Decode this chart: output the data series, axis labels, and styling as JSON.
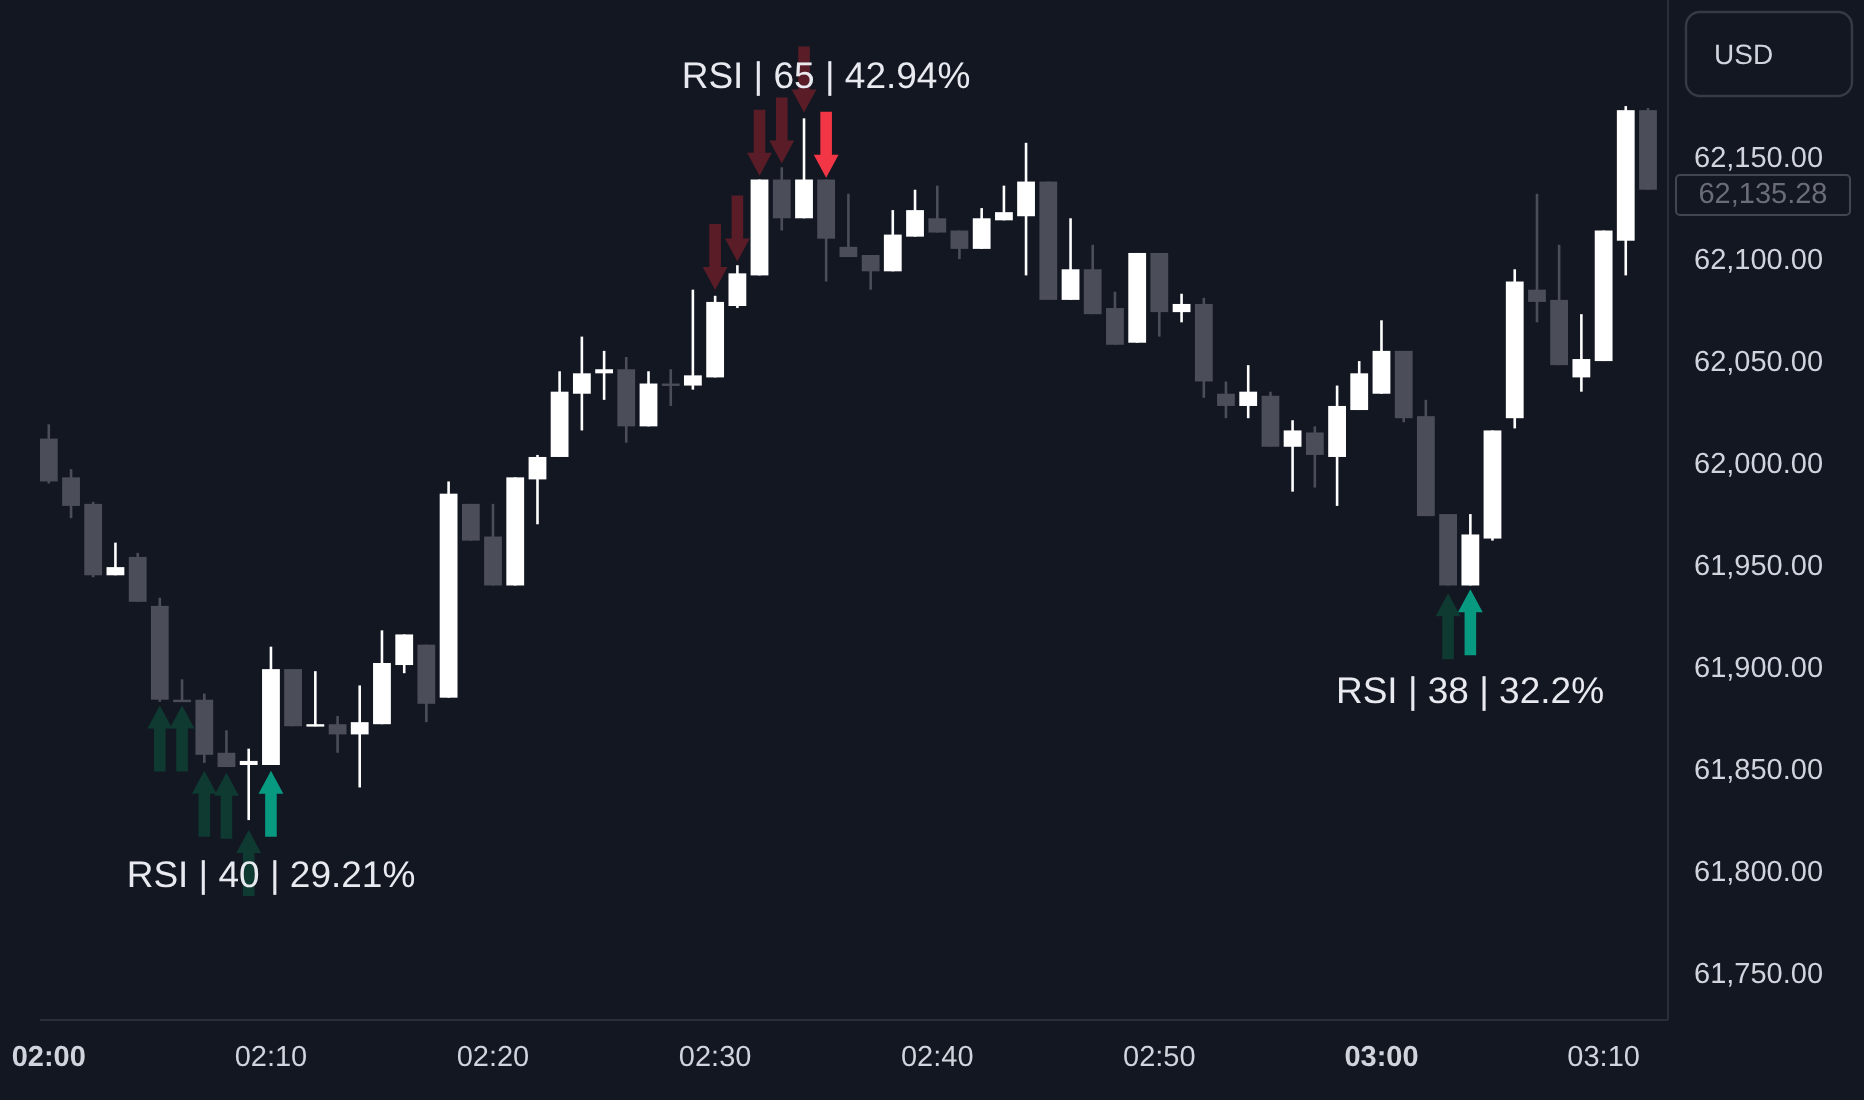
{
  "chart_data": {
    "type": "candlestick",
    "ylabel": "USD",
    "xlim": [
      1.9934,
      3.215
    ],
    "ylim": [
      61728,
      62228
    ],
    "xticks": [
      {
        "value": 2,
        "label": "02:00"
      },
      {
        "value": 2.1667,
        "label": "02:10"
      },
      {
        "value": 2.3333,
        "label": "02:20"
      },
      {
        "value": 2.5,
        "label": "02:30"
      },
      {
        "value": 2.6667,
        "label": "02:40"
      },
      {
        "value": 2.8333,
        "label": "02:50"
      },
      {
        "value": 3,
        "label": "03:00"
      },
      {
        "value": 3.1667,
        "label": "03:10"
      }
    ],
    "yticks": [
      {
        "value": 61750,
        "label": "61,750.00"
      },
      {
        "value": 61800,
        "label": "61,800.00"
      },
      {
        "value": 61850,
        "label": "61,850.00"
      },
      {
        "value": 61900,
        "label": "61,900.00"
      },
      {
        "value": 61950,
        "label": "61,950.00"
      },
      {
        "value": 62000,
        "label": "62,000.00"
      },
      {
        "value": 62050,
        "label": "62,050.00"
      },
      {
        "value": 62100,
        "label": "62,100.00"
      },
      {
        "value": 62150,
        "label": "62,150.00"
      }
    ],
    "x": [
      2,
      2.0167,
      2.0333,
      2.05,
      2.0667,
      2.0833,
      2.1,
      2.1167,
      2.1333,
      2.15,
      2.1667,
      2.1833,
      2.2,
      2.2167,
      2.2333,
      2.25,
      2.2667,
      2.2833,
      2.3,
      2.3167,
      2.3333,
      2.35,
      2.3667,
      2.3833,
      2.4,
      2.4167,
      2.4333,
      2.45,
      2.4667,
      2.4833,
      2.5,
      2.5167,
      2.5333,
      2.55,
      2.5667,
      2.5833,
      2.6,
      2.6167,
      2.6333,
      2.65,
      2.6667,
      2.6833,
      2.7,
      2.7167,
      2.7333,
      2.75,
      2.7667,
      2.7833,
      2.8,
      2.8167,
      2.8333,
      2.85,
      2.8667,
      2.8833,
      2.9,
      2.9167,
      2.9333,
      2.95,
      2.9667,
      2.9833,
      3,
      3.0167,
      3.0333,
      3.05,
      3.0667,
      3.0833,
      3.1,
      3.1167,
      3.1333,
      3.15,
      3.1667,
      3.1833,
      3.2
    ],
    "ohlc": [
      [
        62013,
        62020,
        61991,
        61992
      ],
      [
        61994,
        61998,
        61974,
        61980
      ],
      [
        61981,
        61982,
        61945,
        61946
      ],
      [
        61946,
        61962,
        61946,
        61950
      ],
      [
        61955,
        61957,
        61933,
        61933
      ],
      [
        61931,
        61935,
        61884,
        61885
      ],
      [
        61885,
        61895,
        61884,
        61884
      ],
      [
        61885,
        61888,
        61854,
        61858
      ],
      [
        61859,
        61870,
        61852,
        61852
      ],
      [
        61853,
        61861,
        61826,
        61855
      ],
      [
        61853,
        61911,
        61853,
        61900
      ],
      [
        61900,
        61900,
        61872,
        61872
      ],
      [
        61872,
        61899,
        61872,
        61873
      ],
      [
        61873,
        61877,
        61859,
        61868
      ],
      [
        61868,
        61892,
        61842,
        61874
      ],
      [
        61873,
        61919,
        61873,
        61903
      ],
      [
        61902,
        61917,
        61898,
        61917
      ],
      [
        61912,
        61912,
        61874,
        61883
      ],
      [
        61886,
        61992,
        61886,
        61986
      ],
      [
        61981,
        61981,
        61963,
        61963
      ],
      [
        61965,
        61981,
        61941,
        61941
      ],
      [
        61941,
        61994,
        61941,
        61994
      ],
      [
        61993,
        62005,
        61971,
        62004
      ],
      [
        62004,
        62046,
        62004,
        62036
      ],
      [
        62035,
        62063,
        62017,
        62045
      ],
      [
        62045,
        62056,
        62032,
        62047
      ],
      [
        62047,
        62053,
        62011,
        62019
      ],
      [
        62019,
        62046,
        62019,
        62040
      ],
      [
        62040,
        62047,
        62029,
        62039
      ],
      [
        62039,
        62086,
        62037,
        62044
      ],
      [
        62043,
        62083,
        62043,
        62080
      ],
      [
        62078,
        62098,
        62077,
        62094
      ],
      [
        62093,
        62140,
        62093,
        62140
      ],
      [
        62140,
        62146,
        62115,
        62121
      ],
      [
        62121,
        62170,
        62121,
        62140
      ],
      [
        62140,
        62140,
        62090,
        62111
      ],
      [
        62107,
        62133,
        62102,
        62102
      ],
      [
        62103,
        62103,
        62086,
        62095
      ],
      [
        62095,
        62125,
        62095,
        62113
      ],
      [
        62112,
        62135,
        62112,
        62125
      ],
      [
        62121,
        62137,
        62114,
        62114
      ],
      [
        62115,
        62115,
        62101,
        62106
      ],
      [
        62106,
        62126,
        62106,
        62121
      ],
      [
        62120,
        62137,
        62120,
        62124
      ],
      [
        62122,
        62158,
        62093,
        62139
      ],
      [
        62139,
        62139,
        62081,
        62081
      ],
      [
        62081,
        62121,
        62081,
        62096
      ],
      [
        62096,
        62108,
        62074,
        62074
      ],
      [
        62077,
        62085,
        62059,
        62059
      ],
      [
        62060,
        62104,
        62060,
        62104
      ],
      [
        62104,
        62104,
        62063,
        62075
      ],
      [
        62075,
        62084,
        62070,
        62079
      ],
      [
        62079,
        62082,
        62033,
        62041
      ],
      [
        62035,
        62041,
        62023,
        62029
      ],
      [
        62029,
        62049,
        62023,
        62036
      ],
      [
        62034,
        62036,
        62009,
        62009
      ],
      [
        62009,
        62022,
        61987,
        62017
      ],
      [
        62016,
        62019,
        61989,
        62005
      ],
      [
        62004,
        62039,
        61980,
        62029
      ],
      [
        62027,
        62051,
        62027,
        62045
      ],
      [
        62035,
        62071,
        62035,
        62056
      ],
      [
        62056,
        62056,
        62021,
        62023
      ],
      [
        62024,
        62032,
        61975,
        61975
      ],
      [
        61976,
        61976,
        61941,
        61941
      ],
      [
        61941,
        61976,
        61941,
        61966
      ],
      [
        61964,
        62017,
        61963,
        62017
      ],
      [
        62023,
        62096,
        62018,
        62090
      ],
      [
        62086,
        62133,
        62070,
        62080
      ],
      [
        62081,
        62108,
        62049,
        62049
      ],
      [
        62043,
        62074,
        62036,
        62052
      ],
      [
        62051,
        62115,
        62051,
        62115
      ],
      [
        62110,
        62176,
        62093,
        62174
      ],
      [
        62174,
        62175,
        62135,
        62135
      ]
    ],
    "colors": [
      "#4b4e58",
      "#4b4e58",
      "#4b4e58",
      "#ffffff",
      "#4b4e58",
      "#4b4e58",
      "#4b4e58",
      "#4b4e58",
      "#4b4e58",
      "#ffffff",
      "#ffffff",
      "#4b4e58",
      "#ffffff",
      "#4b4e58",
      "#ffffff",
      "#ffffff",
      "#ffffff",
      "#4b4e58",
      "#ffffff",
      "#4b4e58",
      "#4b4e58",
      "#ffffff",
      "#ffffff",
      "#ffffff",
      "#ffffff",
      "#ffffff",
      "#4b4e58",
      "#ffffff",
      "#4b4e58",
      "#ffffff",
      "#ffffff",
      "#ffffff",
      "#ffffff",
      "#4b4e58",
      "#ffffff",
      "#4b4e58",
      "#4b4e58",
      "#4b4e58",
      "#ffffff",
      "#ffffff",
      "#4b4e58",
      "#4b4e58",
      "#ffffff",
      "#ffffff",
      "#ffffff",
      "#4b4e58",
      "#ffffff",
      "#4b4e58",
      "#4b4e58",
      "#ffffff",
      "#4b4e58",
      "#ffffff",
      "#4b4e58",
      "#4b4e58",
      "#ffffff",
      "#4b4e58",
      "#ffffff",
      "#4b4e58",
      "#ffffff",
      "#ffffff",
      "#ffffff",
      "#4b4e58",
      "#4b4e58",
      "#4b4e58",
      "#ffffff",
      "#ffffff",
      "#ffffff",
      "#4b4e58",
      "#4b4e58",
      "#ffffff",
      "#ffffff",
      "#ffffff",
      "#4b4e58"
    ],
    "series": [
      {
        "type": "scatter",
        "x": [
          2.0833,
          2.1,
          2.1167,
          2.1333,
          2.15,
          2.1667,
          3.05,
          3.0667
        ],
        "values": [
          61866,
          61866,
          61834,
          61833,
          61805,
          61834,
          61921,
          61923
        ],
        "colors": [
          "#0e3a32",
          "#0e3a32",
          "#0e3a32",
          "#0e3a32",
          "#0e3a32",
          "#089981",
          "#0e3a32",
          "#089981"
        ]
      },
      {
        "type": "scatter",
        "x": [
          2.5,
          2.5167,
          2.5333,
          2.55,
          2.5667,
          2.5833
        ],
        "values": [
          62102,
          62116,
          62158,
          62164,
          62189,
          62157
        ],
        "colors": [
          "#5a1d27",
          "#5a1d27",
          "#5a1d27",
          "#5a1d27",
          "#5a1d27",
          "#f23645"
        ]
      }
    ],
    "annotations": [
      "RSI | 40 | 29.21%",
      "RSI | 65 | 42.94%",
      "RSI | 38 | 32.2%",
      "62,135.28"
    ]
  }
}
